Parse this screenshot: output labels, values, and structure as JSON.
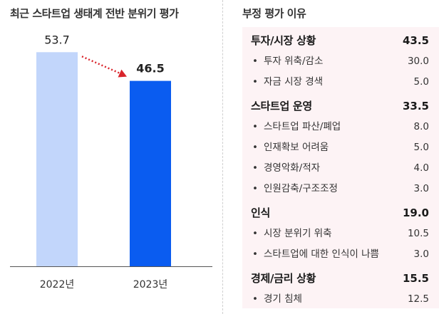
{
  "left_panel": {
    "title": "최근 스타트업 생태계 전반 분위기 평가"
  },
  "right_panel": {
    "title": "부정 평가 이유"
  },
  "chart_data": {
    "type": "bar",
    "categories": [
      "2022년",
      "2023년"
    ],
    "values": [
      53.7,
      46.5
    ],
    "value_labels": [
      "53.7",
      "46.5"
    ],
    "ylim": [
      0,
      60
    ],
    "colors": [
      "#c2d6fb",
      "#0a5cf0"
    ],
    "arrow_color": "#d9252c",
    "legend": "none",
    "grid": false
  },
  "reasons": [
    {
      "label": "투자/시장 상황",
      "value": "43.5",
      "items": [
        {
          "label": "투자 위축/감소",
          "value": "30.0"
        },
        {
          "label": "자금 시장 경색",
          "value": "5.0"
        }
      ]
    },
    {
      "label": "스타트업 운영",
      "value": "33.5",
      "items": [
        {
          "label": "스타트업 파산/폐업",
          "value": "8.0"
        },
        {
          "label": "인재확보 어려움",
          "value": "5.0"
        },
        {
          "label": "경영악화/적자",
          "value": "4.0"
        },
        {
          "label": "인원감축/구조조정",
          "value": "3.0"
        }
      ]
    },
    {
      "label": "인식",
      "value": "19.0",
      "items": [
        {
          "label": "시장 분위기 위축",
          "value": "10.5"
        },
        {
          "label": "스타트업에 대한 인식이 나쁨",
          "value": "3.0"
        }
      ]
    },
    {
      "label": "경제/금리 상황",
      "value": "15.5",
      "items": [
        {
          "label": "경기 침체",
          "value": "12.5"
        }
      ]
    }
  ]
}
